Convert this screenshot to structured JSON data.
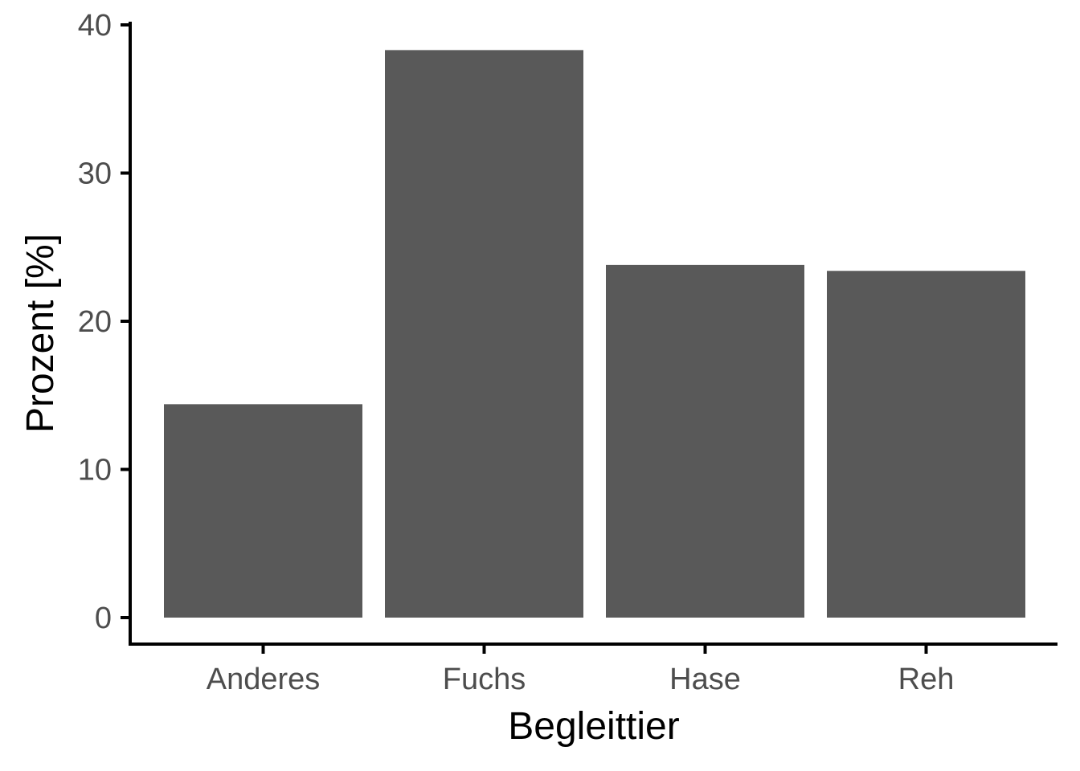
{
  "chart_data": {
    "type": "bar",
    "categories": [
      "Anderes",
      "Fuchs",
      "Hase",
      "Reh"
    ],
    "values": [
      14.4,
      38.3,
      23.8,
      23.4
    ],
    "title": "",
    "xlabel": "Begleittier",
    "ylabel": "Prozent [%]",
    "ylim": [
      0,
      40
    ],
    "yticks": [
      0,
      10,
      20,
      30,
      40
    ],
    "bar_color": "#595959",
    "grid": false,
    "legend": "none"
  }
}
